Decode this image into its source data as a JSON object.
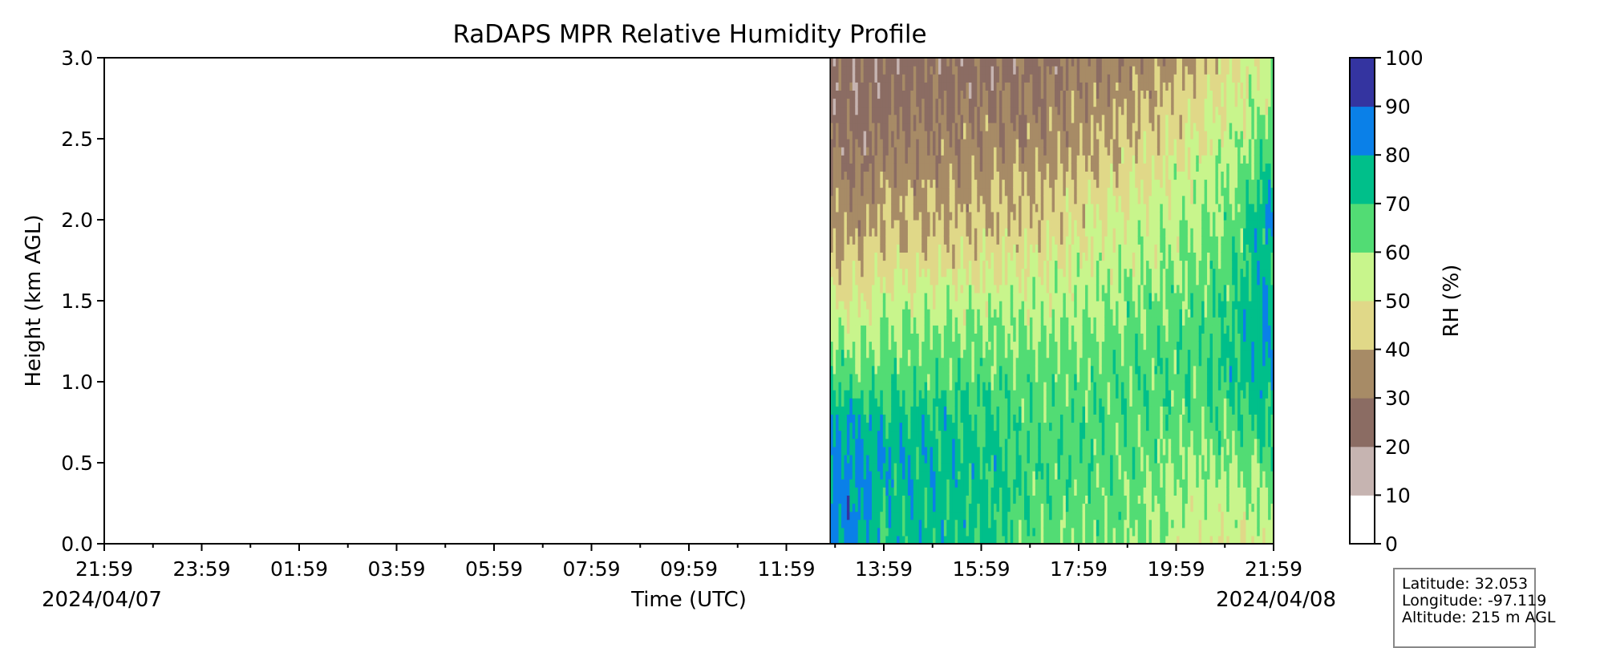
{
  "chart_data": {
    "type": "heatmap",
    "title": "RaDAPS MPR Relative Humidity Profile",
    "xlabel": "Time (UTC)",
    "ylabel": "Height (km AGL)",
    "ylim": [
      0,
      3.0
    ],
    "y_ticks": [
      "0.0",
      "0.5",
      "1.0",
      "1.5",
      "2.0",
      "2.5",
      "3.0"
    ],
    "x_tick_labels": [
      "21:59",
      "23:59",
      "01:59",
      "03:59",
      "05:59",
      "07:59",
      "09:59",
      "11:59",
      "13:59",
      "15:59",
      "17:59",
      "19:59",
      "21:59"
    ],
    "x_start_date": "2024/04/07",
    "x_end_date": "2024/04/08",
    "xlim_hours": [
      0,
      24
    ],
    "data_start_hour": 14.9,
    "heights_km": [
      0.0,
      0.25,
      0.5,
      0.75,
      1.0,
      1.25,
      1.5,
      1.75,
      2.0,
      2.25,
      2.5,
      2.75,
      3.0
    ],
    "profiles": [
      {
        "time_h": 14.9,
        "rh": [
          85,
          85,
          84,
          80,
          70,
          60,
          50,
          40,
          38,
          32,
          28,
          25,
          25
        ]
      },
      {
        "time_h": 15.5,
        "rh": [
          82,
          82,
          80,
          78,
          65,
          58,
          48,
          42,
          35,
          30,
          27,
          25,
          24
        ]
      },
      {
        "time_h": 16.0,
        "rh": [
          72,
          74,
          78,
          75,
          68,
          60,
          55,
          44,
          40,
          35,
          30,
          26,
          25
        ]
      },
      {
        "time_h": 16.8,
        "rh": [
          75,
          76,
          78,
          74,
          66,
          62,
          56,
          45,
          40,
          36,
          32,
          28,
          26
        ]
      },
      {
        "time_h": 17.6,
        "rh": [
          73,
          74,
          75,
          72,
          67,
          62,
          55,
          46,
          41,
          36,
          32,
          28,
          26
        ]
      },
      {
        "time_h": 18.4,
        "rh": [
          70,
          72,
          72,
          70,
          66,
          62,
          56,
          48,
          42,
          38,
          33,
          29,
          26
        ]
      },
      {
        "time_h": 19.2,
        "rh": [
          64,
          66,
          67,
          66,
          64,
          61,
          56,
          49,
          43,
          39,
          34,
          30,
          27
        ]
      },
      {
        "time_h": 20.0,
        "rh": [
          63,
          65,
          66,
          66,
          65,
          62,
          57,
          53,
          47,
          42,
          37,
          33,
          30
        ]
      },
      {
        "time_h": 20.8,
        "rh": [
          62,
          63,
          66,
          67,
          66,
          63,
          60,
          56,
          52,
          46,
          41,
          36,
          32
        ]
      },
      {
        "time_h": 21.6,
        "rh": [
          58,
          60,
          63,
          66,
          67,
          65,
          62,
          58,
          55,
          50,
          45,
          40,
          35
        ]
      },
      {
        "time_h": 22.4,
        "rh": [
          52,
          56,
          60,
          64,
          67,
          66,
          64,
          61,
          58,
          55,
          50,
          45,
          40
        ]
      },
      {
        "time_h": 23.2,
        "rh": [
          50,
          55,
          60,
          66,
          72,
          72,
          70,
          68,
          63,
          60,
          56,
          52,
          47
        ]
      },
      {
        "time_h": 23.9,
        "rh": [
          55,
          60,
          66,
          72,
          78,
          80,
          80,
          76,
          82,
          72,
          64,
          58,
          54
        ]
      },
      {
        "time_h": 24.0,
        "rh": [
          55,
          60,
          65,
          70,
          76,
          78,
          78,
          74,
          80,
          70,
          62,
          57,
          52
        ]
      }
    ],
    "colorbar": {
      "label": "RH (%)",
      "levels": [
        0,
        10,
        20,
        30,
        40,
        50,
        60,
        70,
        80,
        90,
        100
      ],
      "tick_labels": [
        "0",
        "10",
        "20",
        "30",
        "40",
        "50",
        "60",
        "70",
        "80",
        "90",
        "100"
      ],
      "colors": [
        "#ffffff",
        "#c6b4b1",
        "#8b6c63",
        "#a78b66",
        "#e0d888",
        "#c8f58c",
        "#52dc74",
        "#00bf8a",
        "#0a80e8",
        "#3434a0"
      ]
    },
    "grid": false
  },
  "info_box": {
    "latitude": "Latitude: 32.053",
    "longitude": "Longitude: -97.119",
    "altitude": "Altitude: 215 m AGL"
  }
}
